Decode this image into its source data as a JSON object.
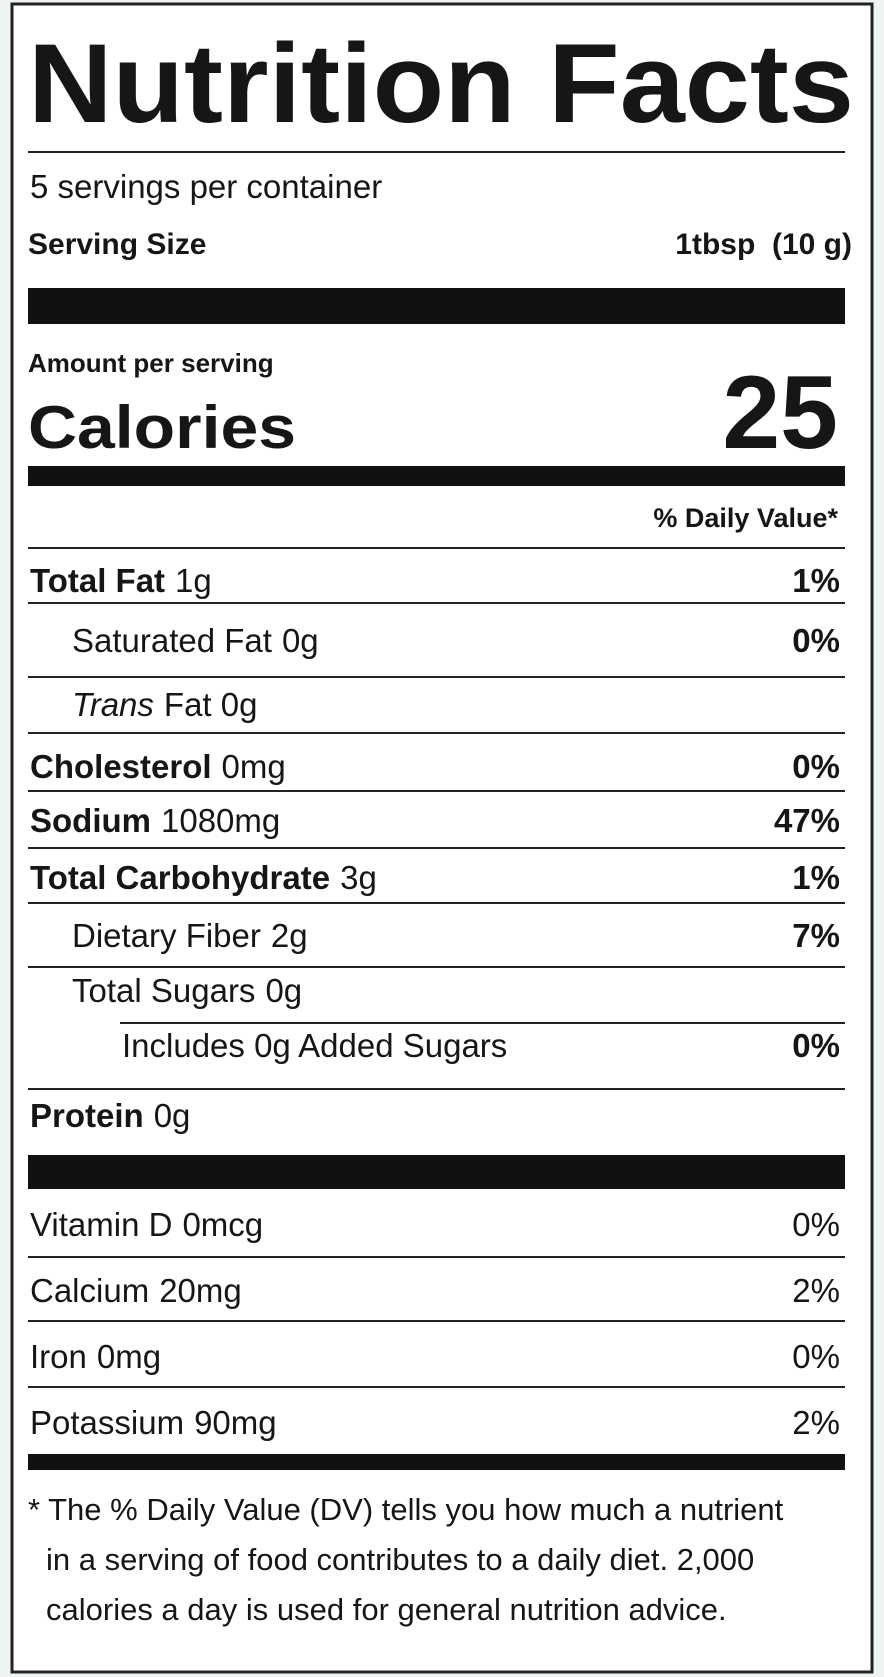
{
  "title": "Nutrition Facts",
  "servings": "5 servings per container",
  "serving_size": {
    "label": "Serving Size",
    "value": "1tbsp  (10 g)"
  },
  "amount_per_serving": "Amount per serving",
  "calories": {
    "label": "Calories",
    "value": "25"
  },
  "daily_value_header": "% Daily Value*",
  "rows": [
    {
      "label": "Total Fat",
      "amount": "1g",
      "dv": "1%",
      "style": "bold",
      "indent": 0
    },
    {
      "label": "Saturated Fat",
      "amount": "0g",
      "dv": "0%",
      "style": "plain",
      "indent": 1
    },
    {
      "label": "Trans",
      "amount": "Fat 0g",
      "style": "italic",
      "indent": 1
    },
    {
      "label": "Cholesterol",
      "amount": "0mg",
      "dv": "0%",
      "style": "bold",
      "indent": 0
    },
    {
      "label": "Sodium",
      "amount": "1080mg",
      "dv": "47%",
      "style": "bold",
      "indent": 0
    },
    {
      "label": "Total Carbohydrate",
      "amount": "3g",
      "dv": "1%",
      "style": "bold",
      "indent": 0
    },
    {
      "label": "Dietary Fiber",
      "amount": "2g",
      "dv": "7%",
      "style": "plain",
      "indent": 1
    },
    {
      "label": "Total Sugars",
      "amount": "0g",
      "style": "plain",
      "indent": 1
    },
    {
      "label": "Includes 0g Added Sugars",
      "dv": "0%",
      "style": "plain",
      "indent": 2
    },
    {
      "label": "Protein",
      "amount": "0g",
      "style": "bold",
      "indent": 0
    }
  ],
  "vitamins": [
    {
      "label": "Vitamin D",
      "amount": "0mcg",
      "dv": "0%"
    },
    {
      "label": "Calcium",
      "amount": "20mg",
      "dv": "2%"
    },
    {
      "label": "Iron",
      "amount": "0mg",
      "dv": "0%"
    },
    {
      "label": "Potassium",
      "amount": "90mg",
      "dv": "2%"
    }
  ],
  "footnote": [
    "* The % Daily Value (DV) tells you how much a nutrient",
    "in a serving of food contributes to a daily diet. 2,000",
    "calories a day is used for general nutrition advice."
  ]
}
